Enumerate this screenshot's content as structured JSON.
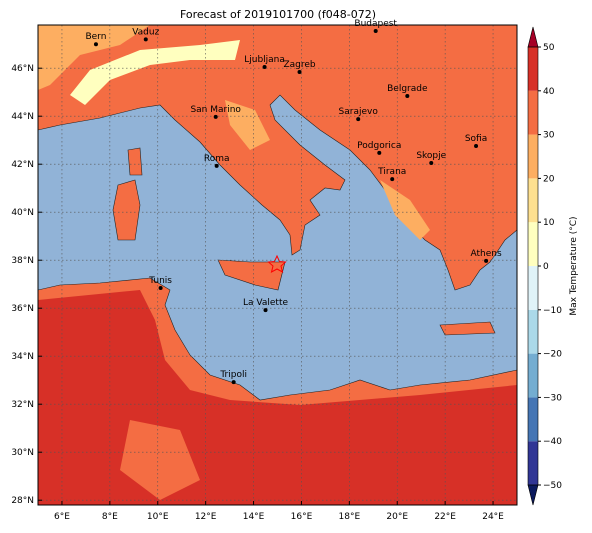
{
  "title": "Forecast of 2019101700 (f048-072)",
  "map": {
    "lon_range": [
      5,
      25
    ],
    "lat_range": [
      27.8,
      47.8
    ],
    "lon_ticks": [
      {
        "value": 6,
        "label": "6°E"
      },
      {
        "value": 8,
        "label": "8°E"
      },
      {
        "value": 10,
        "label": "10°E"
      },
      {
        "value": 12,
        "label": "12°E"
      },
      {
        "value": 14,
        "label": "14°E"
      },
      {
        "value": 16,
        "label": "16°E"
      },
      {
        "value": 18,
        "label": "18°E"
      },
      {
        "value": 20,
        "label": "20°E"
      },
      {
        "value": 22,
        "label": "22°E"
      },
      {
        "value": 24,
        "label": "24°E"
      }
    ],
    "lat_ticks": [
      {
        "value": 28,
        "label": "28°N"
      },
      {
        "value": 30,
        "label": "30°N"
      },
      {
        "value": 32,
        "label": "32°N"
      },
      {
        "value": 34,
        "label": "34°N"
      },
      {
        "value": 36,
        "label": "36°N"
      },
      {
        "value": 38,
        "label": "38°N"
      },
      {
        "value": 40,
        "label": "40°N"
      },
      {
        "value": 42,
        "label": "42°N"
      },
      {
        "value": 44,
        "label": "44°N"
      },
      {
        "value": 46,
        "label": "46°N"
      }
    ],
    "cities": [
      {
        "name": "Bern",
        "lon": 7.42,
        "lat": 47.0
      },
      {
        "name": "Vaduz",
        "lon": 9.5,
        "lat": 47.2
      },
      {
        "name": "Budapest",
        "lon": 19.1,
        "lat": 47.55
      },
      {
        "name": "Ljubljana",
        "lon": 14.46,
        "lat": 46.05
      },
      {
        "name": "Zagreb",
        "lon": 15.92,
        "lat": 45.84
      },
      {
        "name": "Belgrade",
        "lon": 20.42,
        "lat": 44.84
      },
      {
        "name": "Sarajevo",
        "lon": 18.37,
        "lat": 43.88
      },
      {
        "name": "San Marino",
        "lon": 12.42,
        "lat": 43.97
      },
      {
        "name": "Sofia",
        "lon": 23.29,
        "lat": 42.76
      },
      {
        "name": "Roma",
        "lon": 12.46,
        "lat": 41.93
      },
      {
        "name": "Podgorica",
        "lon": 19.25,
        "lat": 42.47
      },
      {
        "name": "Skopje",
        "lon": 21.42,
        "lat": 42.05
      },
      {
        "name": "Tirana",
        "lon": 19.79,
        "lat": 41.38
      },
      {
        "name": "Athens",
        "lon": 23.71,
        "lat": 37.97
      },
      {
        "name": "Tunis",
        "lon": 10.12,
        "lat": 36.84
      },
      {
        "name": "La Valette",
        "lon": 14.5,
        "lat": 35.92
      },
      {
        "name": "Tripoli",
        "lon": 13.17,
        "lat": 32.92
      }
    ]
  },
  "colorbar": {
    "label": "Max Temperature (°C)",
    "lim": [
      -50,
      50
    ],
    "ticks": [
      {
        "value": -50,
        "label": "−50"
      },
      {
        "value": -40,
        "label": "−40"
      },
      {
        "value": -30,
        "label": "−30"
      },
      {
        "value": -20,
        "label": "−20"
      },
      {
        "value": -10,
        "label": "−10"
      },
      0,
      10,
      20,
      30,
      40,
      50
    ],
    "colors": [
      "#313695",
      "#4575b4",
      "#74add1",
      "#abd9e9",
      "#e0f3f8",
      "#ffffbf",
      "#fee090",
      "#fdae61",
      "#f46d43",
      "#d73027"
    ],
    "under_color": "#0b1a5e",
    "over_color": "#a50026"
  }
}
